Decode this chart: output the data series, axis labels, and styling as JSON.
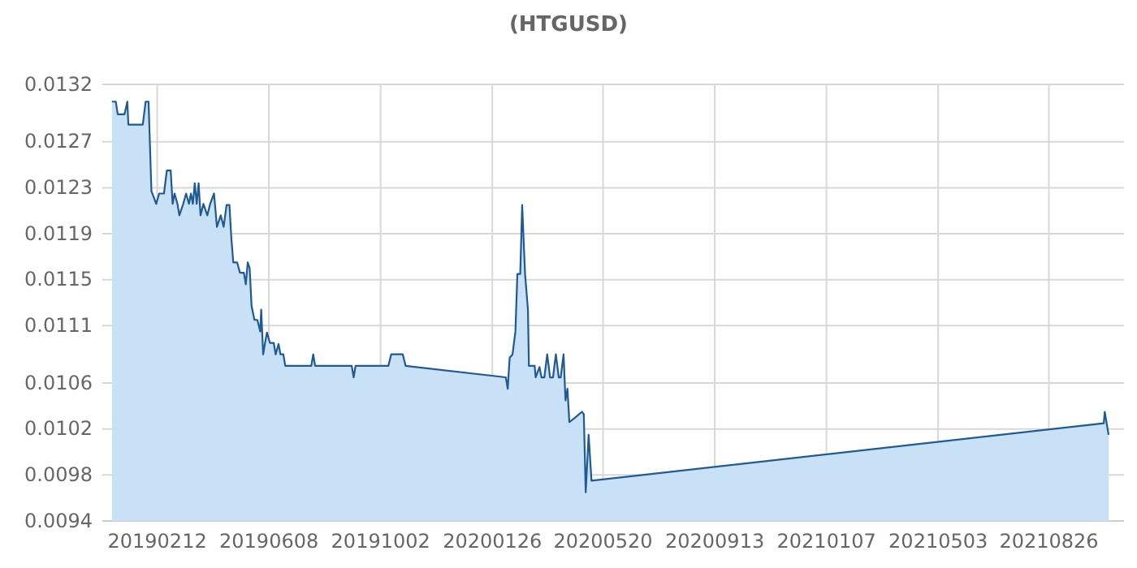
{
  "chart_data": {
    "type": "area",
    "title": "(HTGUSD)",
    "x": [
      "2018-12-27",
      "2018-12-31",
      "2019-01-02",
      "2019-01-09",
      "2019-01-12",
      "2019-01-13",
      "2019-01-28",
      "2019-01-31",
      "2019-02-03",
      "2019-02-06",
      "2019-02-11",
      "2019-02-14",
      "2019-02-19",
      "2019-02-22",
      "2019-02-26",
      "2019-02-28",
      "2019-03-02",
      "2019-03-05",
      "2019-03-07",
      "2019-03-11",
      "2019-03-14",
      "2019-03-17",
      "2019-03-19",
      "2019-03-21",
      "2019-03-23",
      "2019-03-25",
      "2019-03-27",
      "2019-03-29",
      "2019-04-01",
      "2019-04-05",
      "2019-04-08",
      "2019-04-12",
      "2019-04-15",
      "2019-04-19",
      "2019-04-22",
      "2019-04-25",
      "2019-04-28",
      "2019-04-30",
      "2019-05-02",
      "2019-05-06",
      "2019-05-09",
      "2019-05-13",
      "2019-05-15",
      "2019-05-17",
      "2019-05-19",
      "2019-05-21",
      "2019-05-24",
      "2019-05-27",
      "2019-05-30",
      "2019-05-31",
      "2019-06-02",
      "2019-06-04",
      "2019-06-06",
      "2019-06-09",
      "2019-06-13",
      "2019-06-15",
      "2019-06-18",
      "2019-06-20",
      "2019-06-23",
      "2019-06-25",
      "2019-07-22",
      "2019-07-24",
      "2019-07-26",
      "2019-09-02",
      "2019-09-04",
      "2019-09-06",
      "2019-10-10",
      "2019-10-13",
      "2019-10-25",
      "2019-10-28",
      "2020-02-09",
      "2020-02-11",
      "2020-02-13",
      "2020-02-16",
      "2020-02-19",
      "2020-02-21",
      "2020-02-24",
      "2020-02-26",
      "2020-02-29",
      "2020-03-03",
      "2020-03-04",
      "2020-03-10",
      "2020-03-11",
      "2020-03-15",
      "2020-03-17",
      "2020-03-20",
      "2020-03-23",
      "2020-03-26",
      "2020-03-29",
      "2020-04-01",
      "2020-04-04",
      "2020-04-06",
      "2020-04-09",
      "2020-04-11",
      "2020-04-13",
      "2020-04-15",
      "2020-04-21",
      "2020-04-28",
      "2020-04-30",
      "2020-05-02",
      "2020-05-05",
      "2020-05-08",
      "2021-10-22",
      "2021-10-23",
      "2021-10-25",
      "2021-10-27"
    ],
    "series": [
      {
        "color": "#1f5a94",
        "values": [
          0.01305,
          0.01305,
          0.01294,
          0.01294,
          0.01305,
          0.01285,
          0.01285,
          0.01305,
          0.01305,
          0.01227,
          0.01216,
          0.01225,
          0.01225,
          0.01245,
          0.01245,
          0.01216,
          0.01225,
          0.01216,
          0.01206,
          0.01216,
          0.01225,
          0.01216,
          0.01225,
          0.01216,
          0.01234,
          0.01216,
          0.01234,
          0.01206,
          0.01216,
          0.01206,
          0.01216,
          0.01225,
          0.01196,
          0.01206,
          0.01196,
          0.01215,
          0.01215,
          0.01186,
          0.01165,
          0.01165,
          0.01156,
          0.01156,
          0.01146,
          0.01165,
          0.0116,
          0.01127,
          0.01115,
          0.01115,
          0.01105,
          0.01124,
          0.01085,
          0.01095,
          0.01104,
          0.01095,
          0.01095,
          0.01085,
          0.01094,
          0.01085,
          0.01085,
          0.01075,
          0.01075,
          0.01085,
          0.01075,
          0.01075,
          0.01065,
          0.01075,
          0.01075,
          0.01085,
          0.01085,
          0.01075,
          0.01065,
          0.01055,
          0.01082,
          0.01085,
          0.01105,
          0.01155,
          0.01155,
          0.01215,
          0.01155,
          0.01124,
          0.01075,
          0.01075,
          0.01065,
          0.01074,
          0.01065,
          0.01065,
          0.01085,
          0.01065,
          0.01065,
          0.01085,
          0.01065,
          0.01065,
          0.01085,
          0.01045,
          0.01055,
          0.01026,
          0.0103,
          0.01035,
          0.01033,
          0.00965,
          0.01015,
          0.00975,
          0.01025,
          0.01035,
          0.01025,
          0.01015
        ]
      }
    ],
    "xlim": [
      "2018-12-17",
      "2021-11-12"
    ],
    "xticks": [
      {
        "value": "2019-02-12",
        "label": "20190212"
      },
      {
        "value": "2019-06-08",
        "label": "20190608"
      },
      {
        "value": "2019-10-02",
        "label": "20191002"
      },
      {
        "value": "2020-01-26",
        "label": "20200126"
      },
      {
        "value": "2020-05-20",
        "label": "20200520"
      },
      {
        "value": "2020-09-13",
        "label": "20200913"
      },
      {
        "value": "2021-01-07",
        "label": "20210107"
      },
      {
        "value": "2021-05-03",
        "label": "20210503"
      },
      {
        "value": "2021-08-26",
        "label": "20210826"
      }
    ],
    "ylim": [
      0.0094,
      0.0132
    ],
    "yticks": [
      0.0094,
      0.0098,
      0.0102,
      0.0106,
      0.0111,
      0.0115,
      0.0119,
      0.0123,
      0.0127,
      0.0132
    ],
    "grid": true
  }
}
